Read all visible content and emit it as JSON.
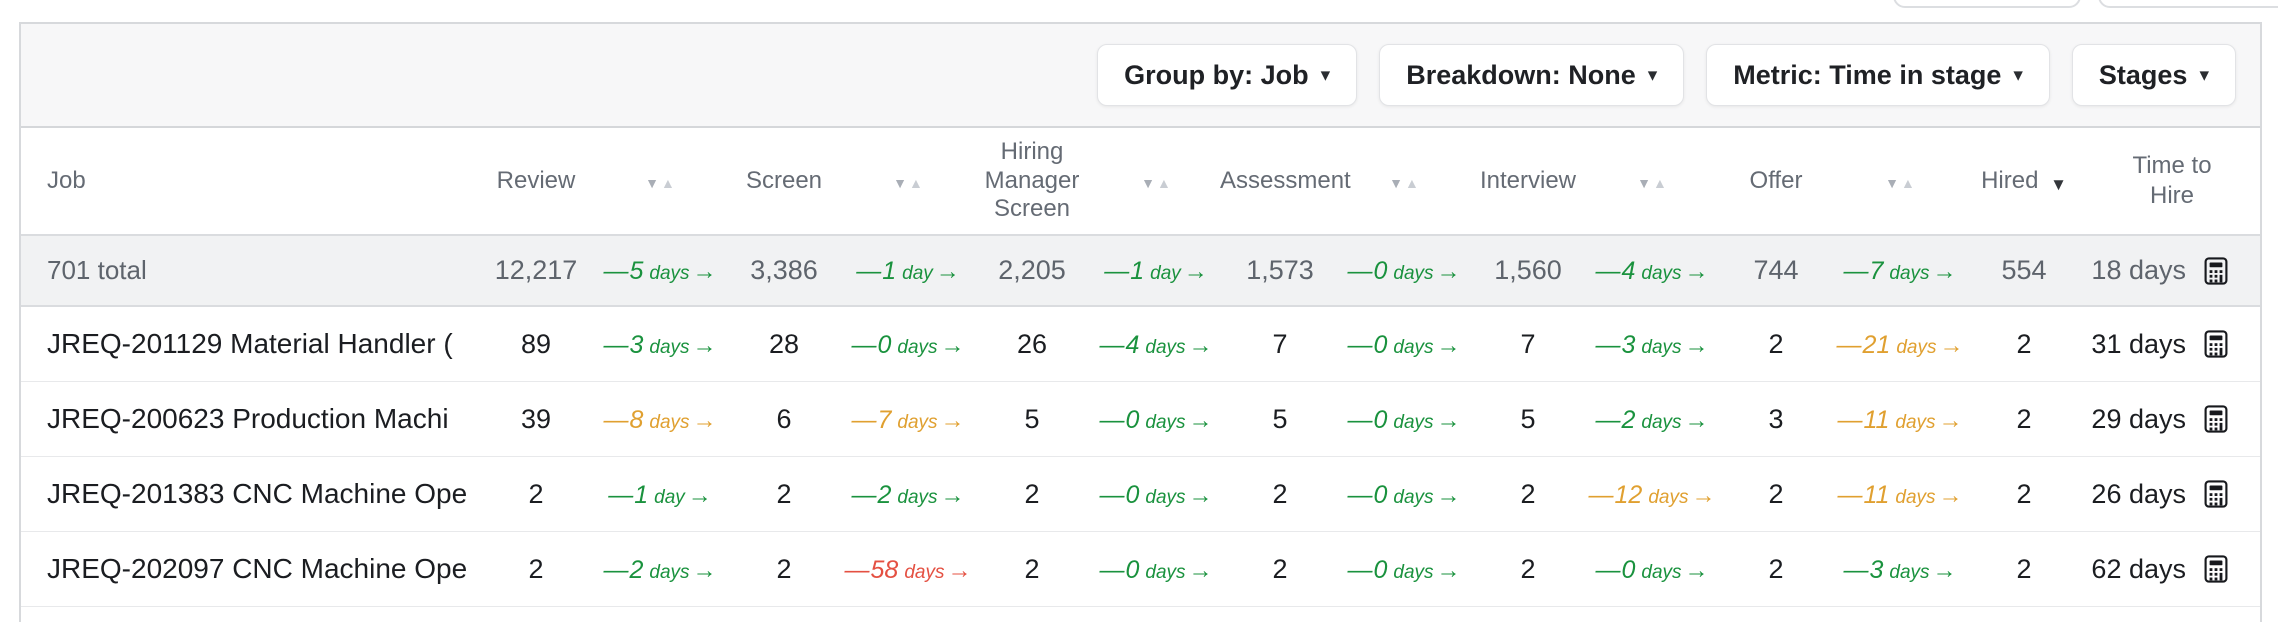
{
  "colors": {
    "green": "#1a923e",
    "orange": "#e0a030",
    "red": "#e45042"
  },
  "toolbar": {
    "buttons": [
      {
        "name": "group-by",
        "label": "Group by: Job"
      },
      {
        "name": "breakdown",
        "label": "Breakdown: None"
      },
      {
        "name": "metric",
        "label": "Metric: Time in stage"
      },
      {
        "name": "stages",
        "label": "Stages"
      }
    ]
  },
  "table": {
    "job_header": "Job",
    "stage_columns": [
      "Review",
      "Screen",
      "Hiring Manager Screen",
      "Assessment",
      "Interview",
      "Offer",
      "Hired"
    ],
    "tth_header": "Time to Hire",
    "sorted_column": "Hired",
    "sort_direction": "desc",
    "total_row": {
      "job": "701 total",
      "counts": [
        "12,217",
        "3,386",
        "2,205",
        "1,573",
        "1,560",
        "744",
        "554"
      ],
      "transitions": [
        {
          "value": "5",
          "unit": "days",
          "color": "green"
        },
        {
          "value": "1",
          "unit": "day",
          "color": "green"
        },
        {
          "value": "1",
          "unit": "day",
          "color": "green"
        },
        {
          "value": "0",
          "unit": "days",
          "color": "green"
        },
        {
          "value": "4",
          "unit": "days",
          "color": "green"
        },
        {
          "value": "7",
          "unit": "days",
          "color": "green"
        }
      ],
      "time_to_hire": "18 days"
    },
    "rows": [
      {
        "job": "JREQ-201129 Material Handler (",
        "counts": [
          "89",
          "28",
          "26",
          "7",
          "7",
          "2",
          "2"
        ],
        "transitions": [
          {
            "value": "3",
            "unit": "days",
            "color": "green"
          },
          {
            "value": "0",
            "unit": "days",
            "color": "green"
          },
          {
            "value": "4",
            "unit": "days",
            "color": "green"
          },
          {
            "value": "0",
            "unit": "days",
            "color": "green"
          },
          {
            "value": "3",
            "unit": "days",
            "color": "green"
          },
          {
            "value": "21",
            "unit": "days",
            "color": "orange"
          }
        ],
        "time_to_hire": "31 days"
      },
      {
        "job": "JREQ-200623 Production Machi",
        "counts": [
          "39",
          "6",
          "5",
          "5",
          "5",
          "3",
          "2"
        ],
        "transitions": [
          {
            "value": "8",
            "unit": "days",
            "color": "orange"
          },
          {
            "value": "7",
            "unit": "days",
            "color": "orange"
          },
          {
            "value": "0",
            "unit": "days",
            "color": "green"
          },
          {
            "value": "0",
            "unit": "days",
            "color": "green"
          },
          {
            "value": "2",
            "unit": "days",
            "color": "green"
          },
          {
            "value": "11",
            "unit": "days",
            "color": "orange"
          }
        ],
        "time_to_hire": "29 days"
      },
      {
        "job": "JREQ-201383 CNC Machine Ope",
        "counts": [
          "2",
          "2",
          "2",
          "2",
          "2",
          "2",
          "2"
        ],
        "transitions": [
          {
            "value": "1",
            "unit": "day",
            "color": "green"
          },
          {
            "value": "2",
            "unit": "days",
            "color": "green"
          },
          {
            "value": "0",
            "unit": "days",
            "color": "green"
          },
          {
            "value": "0",
            "unit": "days",
            "color": "green"
          },
          {
            "value": "12",
            "unit": "days",
            "color": "orange"
          },
          {
            "value": "11",
            "unit": "days",
            "color": "orange"
          }
        ],
        "time_to_hire": "26 days"
      },
      {
        "job": "JREQ-202097 CNC Machine Ope",
        "counts": [
          "2",
          "2",
          "2",
          "2",
          "2",
          "2",
          "2"
        ],
        "transitions": [
          {
            "value": "2",
            "unit": "days",
            "color": "green"
          },
          {
            "value": "58",
            "unit": "days",
            "color": "red"
          },
          {
            "value": "0",
            "unit": "days",
            "color": "green"
          },
          {
            "value": "0",
            "unit": "days",
            "color": "green"
          },
          {
            "value": "0",
            "unit": "days",
            "color": "green"
          },
          {
            "value": "3",
            "unit": "days",
            "color": "green"
          }
        ],
        "time_to_hire": "62 days"
      }
    ]
  }
}
